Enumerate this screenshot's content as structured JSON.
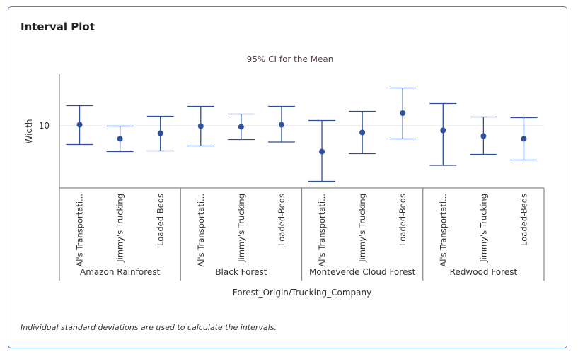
{
  "panel": {
    "title": "Interval Plot",
    "footnote": "Individual standard deviations are used to calculate the intervals."
  },
  "chart_data": {
    "type": "interval",
    "title": "95% CI for the Mean",
    "xlabel": "Forest_Origin/Trucking_Company",
    "ylabel": "Width",
    "yticks": [
      10
    ],
    "ylim": [
      8.24,
      11.46
    ],
    "grid": "horizontal at tick",
    "color": "#2e4f9e",
    "groups": [
      {
        "name": "Amazon Rainforest",
        "items": [
          {
            "label": "Al's Transportati...",
            "lower": 9.47,
            "mean": 10.03,
            "upper": 10.57
          },
          {
            "label": "Jimmy's Trucking",
            "lower": 9.27,
            "mean": 9.63,
            "upper": 9.99
          },
          {
            "label": "Loaded-Beds",
            "lower": 9.29,
            "mean": 9.79,
            "upper": 10.27
          }
        ]
      },
      {
        "name": "Black Forest",
        "items": [
          {
            "label": "Al's Transportati...",
            "lower": 9.43,
            "mean": 9.99,
            "upper": 10.55
          },
          {
            "label": "Jimmy's Trucking",
            "lower": 9.61,
            "mean": 9.97,
            "upper": 10.33
          },
          {
            "label": "Loaded-Beds",
            "lower": 9.54,
            "mean": 10.03,
            "upper": 10.55
          }
        ]
      },
      {
        "name": "Monteverde Cloud Forest",
        "items": [
          {
            "label": "Al's Transportati...",
            "lower": 8.43,
            "mean": 9.27,
            "upper": 10.15
          },
          {
            "label": "Jimmy's Trucking",
            "lower": 9.21,
            "mean": 9.81,
            "upper": 10.41
          },
          {
            "label": "Loaded-Beds",
            "lower": 9.63,
            "mean": 10.36,
            "upper": 11.07
          }
        ]
      },
      {
        "name": "Redwood Forest",
        "items": [
          {
            "label": "Al's Transportati...",
            "lower": 8.88,
            "mean": 9.87,
            "upper": 10.63
          },
          {
            "label": "Jimmy's Trucking",
            "lower": 9.19,
            "mean": 9.71,
            "upper": 10.25
          },
          {
            "label": "Loaded-Beds",
            "lower": 9.03,
            "mean": 9.63,
            "upper": 10.23
          }
        ]
      }
    ]
  }
}
